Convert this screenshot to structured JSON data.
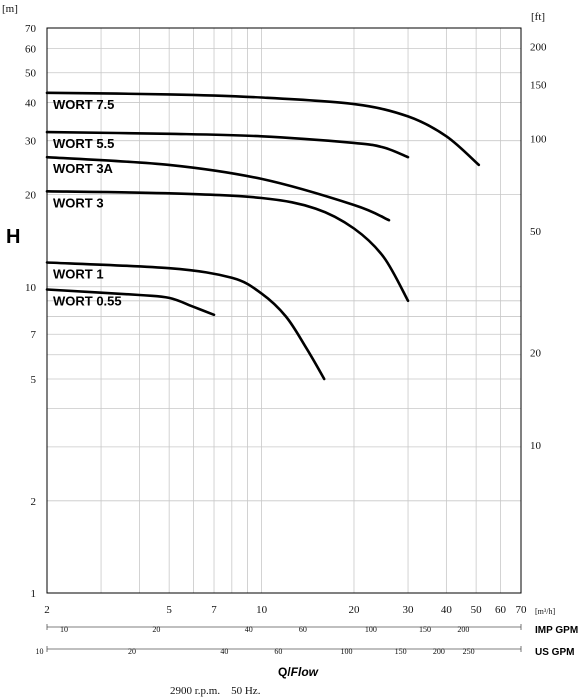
{
  "chart_data": {
    "type": "line",
    "title": "",
    "ylabel": "H",
    "xlabel_prefix": "Q/",
    "xlabel_suffix": "Flow",
    "y_unit_left": "[m]",
    "y_unit_right": "[ft]",
    "x_unit": "[m³/h]",
    "x_scale": "log",
    "y_scale": "log",
    "xlim": [
      2,
      70
    ],
    "ylim": [
      1,
      70
    ],
    "x_ticks": [
      2,
      5,
      7,
      10,
      20,
      30,
      40,
      50,
      60,
      70
    ],
    "y_ticks_left": [
      1,
      2,
      5,
      7,
      10,
      20,
      30,
      40,
      50,
      60,
      70
    ],
    "y_ticks_right_ft": [
      10,
      20,
      50,
      100,
      150,
      200
    ],
    "imp_gpm_label": "IMP GPM",
    "imp_gpm_ticks": [
      10,
      20,
      40,
      60,
      100,
      150,
      200
    ],
    "us_gpm_label": "US GPM",
    "us_gpm_ticks": [
      10,
      20,
      40,
      60,
      100,
      150,
      200,
      250
    ],
    "grid": true,
    "series": [
      {
        "name": "WORT 7.5",
        "points": [
          [
            2,
            43
          ],
          [
            5,
            42.5
          ],
          [
            10,
            41.5
          ],
          [
            20,
            39.5
          ],
          [
            30,
            36
          ],
          [
            40,
            31
          ],
          [
            51,
            25
          ]
        ]
      },
      {
        "name": "WORT 5.5",
        "points": [
          [
            2,
            32
          ],
          [
            5,
            31.6
          ],
          [
            10,
            31
          ],
          [
            20,
            29.5
          ],
          [
            25,
            28.5
          ],
          [
            30,
            26.5
          ]
        ]
      },
      {
        "name": "WORT 3A",
        "points": [
          [
            2,
            26.5
          ],
          [
            5,
            25
          ],
          [
            10,
            22.5
          ],
          [
            20,
            18.5
          ],
          [
            26,
            16.5
          ]
        ]
      },
      {
        "name": "WORT 3",
        "points": [
          [
            2,
            20.5
          ],
          [
            5,
            20.2
          ],
          [
            10,
            19.5
          ],
          [
            15,
            18
          ],
          [
            20,
            15.5
          ],
          [
            25,
            12.5
          ],
          [
            30,
            9
          ]
        ]
      },
      {
        "name": "WORT 1",
        "points": [
          [
            2,
            12
          ],
          [
            5,
            11.5
          ],
          [
            8,
            10.7
          ],
          [
            10,
            9.5
          ],
          [
            12,
            8
          ],
          [
            14,
            6.3
          ],
          [
            16,
            5
          ]
        ]
      },
      {
        "name": "WORT 0.55",
        "points": [
          [
            2,
            9.8
          ],
          [
            4,
            9.4
          ],
          [
            5,
            9.2
          ],
          [
            6,
            8.6
          ],
          [
            7,
            8.1
          ]
        ]
      }
    ]
  },
  "footer_note": "2900 r.p.m.    50 Hz."
}
